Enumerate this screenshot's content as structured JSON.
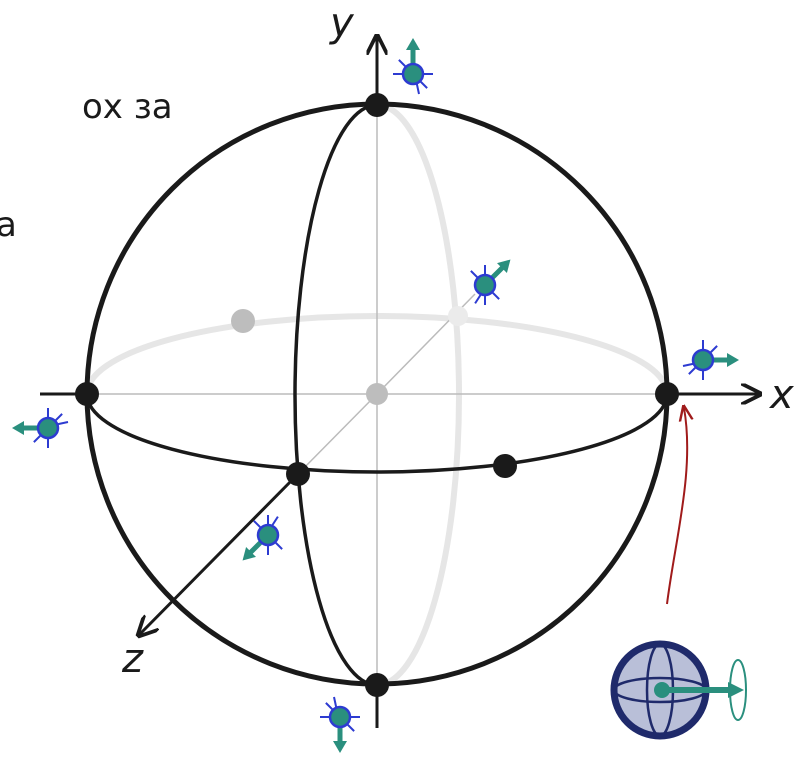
{
  "text_fragments": [
    "ох за",
    "а"
  ],
  "axes": {
    "x": "x",
    "y": "y",
    "z": "z"
  }
}
